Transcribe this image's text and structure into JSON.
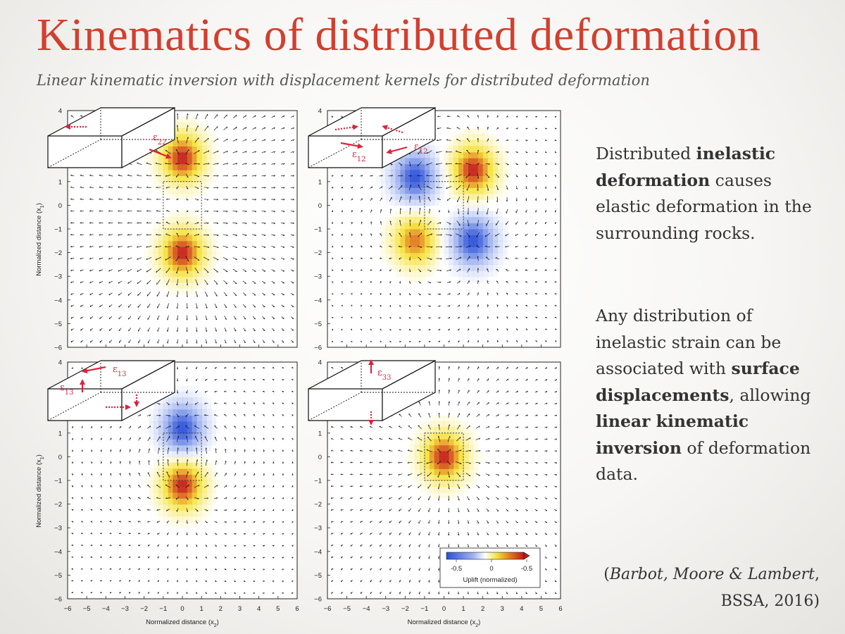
{
  "title": "Kinematics of distributed deformation",
  "subtitle": "Linear kinematic inversion with displacement kernels for distributed deformation",
  "paragraph1": {
    "p1": "Distributed ",
    "b1": "inelastic",
    "b2": "deformation",
    "p2": " causes elastic deformation in the surrounding rocks."
  },
  "paragraph2": {
    "p1": "Any distribution of inelastic strain can be associated with ",
    "b1": "surface",
    "b2": "displacements",
    "p2": ", allowing ",
    "b3": "linear kinematic",
    "b4": "inversion",
    "p3": " of deformation data."
  },
  "citation": {
    "authors": "Barbot, Moore & Lambert",
    "journal": "BSSA, 2016)"
  },
  "chart_data": [
    {
      "type": "heatmap",
      "panel": "top-left",
      "strain_component": "ε22",
      "xlim": [
        -6,
        6
      ],
      "ylim": [
        -6,
        4
      ],
      "ylabel": "Normalized distance (x1)",
      "xlabel": "",
      "sources": [
        {
          "x": 0,
          "y": 2,
          "value": 1.0
        },
        {
          "x": 0,
          "y": -2,
          "value": 1.0
        }
      ],
      "box": [
        -1,
        1,
        -1,
        1
      ]
    },
    {
      "type": "heatmap",
      "panel": "top-right",
      "strain_component": "ε12",
      "xlim": [
        -6,
        6
      ],
      "ylim": [
        -6,
        4
      ],
      "ylabel": "",
      "xlabel": "",
      "sources": [
        {
          "x": 1.5,
          "y": 1.5,
          "value": 1.0
        },
        {
          "x": -1.5,
          "y": -1.5,
          "value": 0.8
        },
        {
          "x": -1.5,
          "y": 1.2,
          "value": -1.0
        },
        {
          "x": 1.5,
          "y": -1.5,
          "value": -1.0
        }
      ],
      "box": [
        -1,
        1,
        -1,
        1
      ]
    },
    {
      "type": "heatmap",
      "panel": "bottom-left",
      "strain_component": "ε13",
      "xlim": [
        -6,
        6
      ],
      "ylim": [
        -6,
        4
      ],
      "ylabel": "Normalized distance (x1)",
      "xlabel": "Normalized distance (x2)",
      "sources": [
        {
          "x": 0,
          "y": 1.2,
          "value": -1.0
        },
        {
          "x": 0,
          "y": -1.2,
          "value": 1.0
        }
      ],
      "box": [
        -1,
        1,
        -1,
        1
      ]
    },
    {
      "type": "heatmap",
      "panel": "bottom-right",
      "strain_component": "ε33",
      "xlim": [
        -6,
        6
      ],
      "ylim": [
        -6,
        4
      ],
      "ylabel": "",
      "xlabel": "Normalized distance (x2)",
      "sources": [
        {
          "x": 0,
          "y": 0,
          "value": 1.0
        }
      ],
      "box": [
        -1,
        1,
        -1,
        1
      ],
      "colorbar": {
        "label": "Uplift (normalized)",
        "tick_labels": [
          "-0.5",
          "0",
          "-0.5"
        ],
        "colors": [
          "#2a4fd8",
          "#ffffff",
          "#f5e23a",
          "#e07b1e",
          "#c01818"
        ]
      }
    }
  ],
  "axis_ticks": {
    "x": [
      "−6",
      "−5",
      "−4",
      "−3",
      "−2",
      "−1",
      "0",
      "1",
      "2",
      "3",
      "4",
      "5",
      "6"
    ],
    "y": [
      "4",
      "3",
      "2",
      "1",
      "0",
      "−1",
      "−2",
      "−3",
      "−4",
      "−5",
      "−6"
    ]
  },
  "labels": {
    "x_axis_title": "Normalized distance (x",
    "x_axis_sub": "2",
    "y_axis_title": "Normalized distance (x",
    "y_axis_sub": "1",
    "close_paren": ")"
  },
  "strain_labels": {
    "e22": "ε",
    "e22_sub": "22",
    "e12": "ε",
    "e12_sub": "12",
    "e13": "ε",
    "e13_sub": "13",
    "e33": "ε",
    "e33_sub": "33"
  },
  "colors": {
    "title": "#d23f2f",
    "arrow": "#e0203a",
    "positive": "#c01818",
    "negative": "#2a4fd8"
  }
}
